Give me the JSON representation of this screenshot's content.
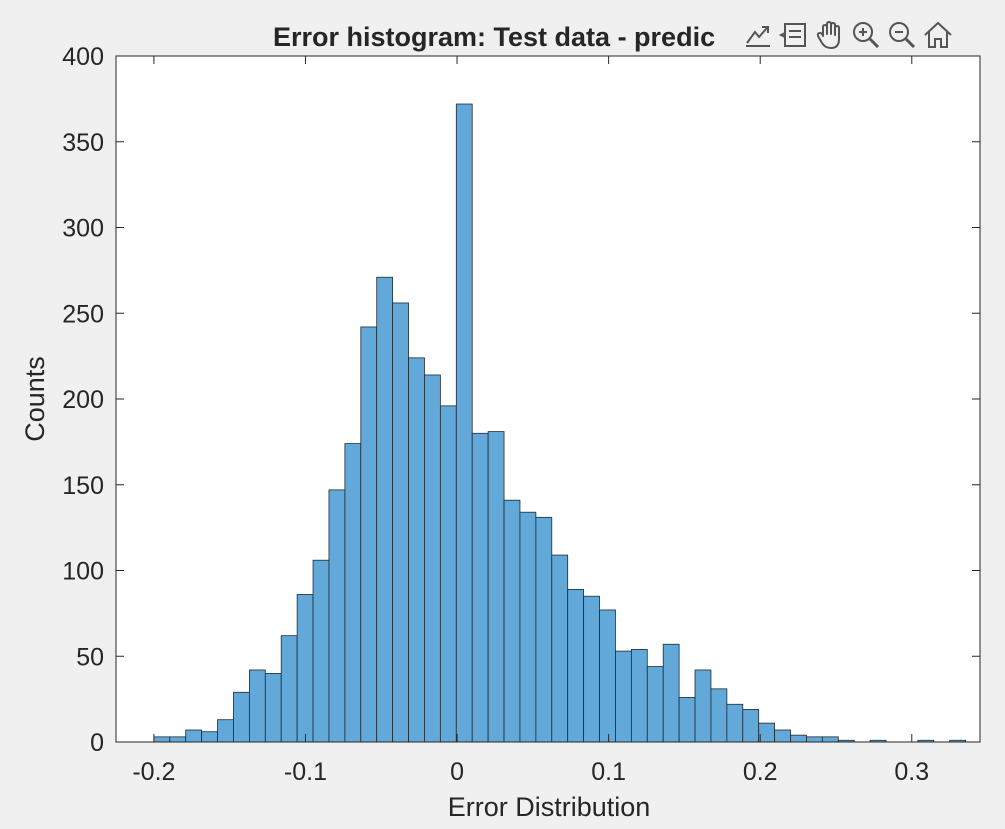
{
  "toolbar": {
    "icons": [
      "export-icon",
      "data-tips-icon",
      "pan-hand-icon",
      "zoom-in-icon",
      "zoom-out-icon",
      "home-icon"
    ]
  },
  "chart_data": {
    "type": "bar",
    "title": "Error histogram: Test data - predic",
    "xlabel": "Error Distribution",
    "ylabel": "Counts",
    "xlim": [
      -0.225,
      0.345
    ],
    "ylim": [
      0,
      400
    ],
    "xticks": [
      -0.2,
      -0.1,
      0,
      0.1,
      0.2,
      0.3
    ],
    "xtick_labels": [
      "-0.2",
      "-0.1",
      "0",
      "0.1",
      "0.2",
      "0.3"
    ],
    "yticks": [
      0,
      50,
      100,
      150,
      200,
      250,
      300,
      350,
      400
    ],
    "ytick_labels": [
      "0",
      "50",
      "100",
      "150",
      "200",
      "250",
      "300",
      "350",
      "400"
    ],
    "bin_start": -0.2,
    "bin_width": 0.0105,
    "values": [
      3,
      3,
      7,
      6,
      13,
      29,
      42,
      40,
      62,
      86,
      106,
      147,
      174,
      242,
      271,
      256,
      224,
      214,
      196,
      372,
      180,
      181,
      141,
      134,
      131,
      109,
      89,
      85,
      77,
      53,
      54,
      44,
      57,
      26,
      42,
      31,
      22,
      19,
      11,
      7,
      4,
      3,
      3,
      1,
      0,
      1,
      0,
      0,
      1,
      0,
      1
    ],
    "bar_color": "#62a9d9",
    "edge_color": "#1f2a33",
    "grid": false
  }
}
